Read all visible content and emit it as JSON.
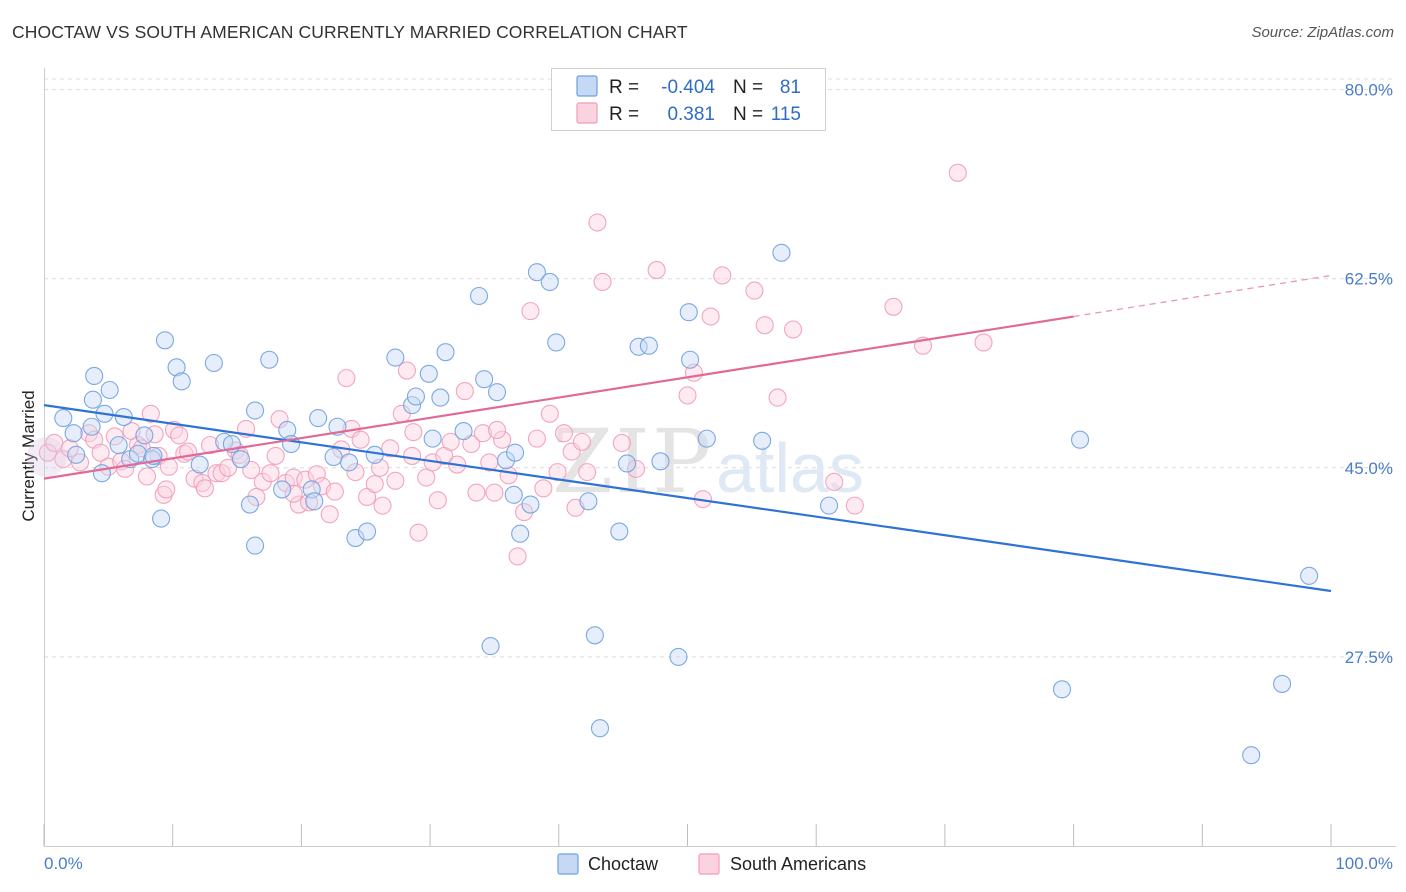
{
  "title": "CHOCTAW VS SOUTH AMERICAN CURRENTLY MARRIED CORRELATION CHART",
  "source": "Source: ZipAtlas.com",
  "watermark": {
    "zip": "ZIP",
    "atlas": "atlas"
  },
  "legend": {
    "r_label": "R =",
    "n_label": "N =",
    "rows": [
      {
        "series": "Choctaw",
        "r": "-0.404",
        "n": "81",
        "color": "#6fa0e0"
      },
      {
        "series": "South Americans",
        "r": "0.381",
        "n": "115",
        "color": "#f29bb8"
      }
    ]
  },
  "bottom_legend": [
    "Choctaw",
    "South Americans"
  ],
  "chart_data": {
    "type": "scatter",
    "ylabel": "Currently Married",
    "xlabel": "",
    "xlim": [
      0,
      100
    ],
    "ylim": [
      10,
      82
    ],
    "x_tick_labels": [
      "0.0%",
      "100.0%"
    ],
    "y_ticks": [
      27.5,
      45.0,
      62.5,
      80.0
    ],
    "y_tick_labels": [
      "27.5%",
      "45.0%",
      "62.5%",
      "80.0%"
    ],
    "grid": true,
    "colors": {
      "choctaw": "#6fa0e0",
      "south_americans": "#f29bb8",
      "choctaw_line": "#2f72d6",
      "south_line": "#e06a96"
    },
    "series": [
      {
        "name": "Choctaw",
        "trend": {
          "x0": 0,
          "y0": 50.8,
          "x1": 100,
          "y1": 33.6
        },
        "points": [
          [
            1.5,
            49.6
          ],
          [
            2.3,
            48.2
          ],
          [
            2.5,
            46.2
          ],
          [
            3.7,
            48.8
          ],
          [
            4.5,
            44.5
          ],
          [
            3.8,
            51.3
          ],
          [
            4.7,
            50.0
          ],
          [
            3.9,
            53.5
          ],
          [
            5.1,
            52.2
          ],
          [
            5.8,
            47.1
          ],
          [
            6.2,
            49.7
          ],
          [
            6.7,
            45.8
          ],
          [
            7.3,
            46.3
          ],
          [
            7.8,
            48.0
          ],
          [
            8.4,
            45.8
          ],
          [
            9.4,
            56.8
          ],
          [
            8.5,
            46.1
          ],
          [
            9.1,
            40.3
          ],
          [
            10.3,
            54.3
          ],
          [
            10.7,
            53.0
          ],
          [
            12.1,
            45.3
          ],
          [
            13.2,
            54.7
          ],
          [
            14.0,
            47.4
          ],
          [
            14.6,
            47.2
          ],
          [
            15.3,
            45.8
          ],
          [
            16.0,
            41.6
          ],
          [
            16.4,
            37.8
          ],
          [
            17.5,
            55.0
          ],
          [
            18.5,
            43.0
          ],
          [
            18.9,
            48.5
          ],
          [
            20.8,
            43.0
          ],
          [
            21.0,
            41.9
          ],
          [
            21.3,
            49.6
          ],
          [
            22.8,
            48.8
          ],
          [
            23.7,
            45.5
          ],
          [
            24.2,
            38.5
          ],
          [
            25.1,
            39.1
          ],
          [
            25.7,
            46.2
          ],
          [
            27.3,
            55.2
          ],
          [
            28.6,
            50.8
          ],
          [
            28.9,
            51.6
          ],
          [
            29.9,
            53.7
          ],
          [
            30.8,
            51.5
          ],
          [
            31.2,
            55.7
          ],
          [
            32.6,
            48.4
          ],
          [
            33.8,
            60.9
          ],
          [
            34.2,
            53.2
          ],
          [
            35.2,
            52.0
          ],
          [
            34.7,
            28.5
          ],
          [
            35.9,
            45.7
          ],
          [
            36.6,
            46.4
          ],
          [
            37.0,
            38.9
          ],
          [
            37.8,
            41.6
          ],
          [
            38.3,
            63.1
          ],
          [
            39.3,
            62.2
          ],
          [
            39.8,
            56.6
          ],
          [
            42.3,
            41.9
          ],
          [
            42.8,
            29.5
          ],
          [
            43.2,
            20.9
          ],
          [
            44.7,
            39.1
          ],
          [
            45.3,
            45.4
          ],
          [
            46.2,
            56.2
          ],
          [
            47.0,
            56.3
          ],
          [
            47.9,
            45.6
          ],
          [
            49.3,
            27.5
          ],
          [
            50.2,
            55.0
          ],
          [
            50.1,
            59.4
          ],
          [
            51.5,
            47.7
          ],
          [
            55.8,
            47.5
          ],
          [
            57.3,
            64.9
          ],
          [
            61.0,
            41.5
          ],
          [
            79.1,
            24.5
          ],
          [
            80.5,
            47.6
          ],
          [
            93.8,
            18.4
          ],
          [
            96.2,
            25.0
          ],
          [
            98.3,
            35.0
          ],
          [
            16.4,
            50.3
          ],
          [
            22.5,
            46.0
          ],
          [
            30.2,
            47.7
          ],
          [
            36.5,
            42.5
          ],
          [
            19.2,
            47.2
          ]
        ]
      },
      {
        "name": "South Americans",
        "trend": {
          "x0": 0,
          "y0": 44.0,
          "x1": 80,
          "y1": 59.0,
          "dash_to_x": 100,
          "dash_to_y": 62.8
        },
        "points": [
          [
            0.3,
            46.4
          ],
          [
            0.8,
            47.3
          ],
          [
            1.5,
            45.8
          ],
          [
            2.0,
            46.8
          ],
          [
            2.8,
            45.5
          ],
          [
            3.5,
            48.2
          ],
          [
            3.9,
            47.6
          ],
          [
            4.4,
            46.4
          ],
          [
            5.0,
            45.1
          ],
          [
            5.5,
            47.9
          ],
          [
            6.0,
            45.6
          ],
          [
            6.3,
            44.9
          ],
          [
            6.8,
            48.4
          ],
          [
            7.3,
            47.1
          ],
          [
            7.6,
            46.8
          ],
          [
            8.0,
            44.2
          ],
          [
            8.3,
            50.0
          ],
          [
            8.6,
            48.1
          ],
          [
            8.9,
            46.1
          ],
          [
            9.3,
            42.5
          ],
          [
            9.7,
            45.1
          ],
          [
            10.1,
            48.5
          ],
          [
            10.5,
            48.0
          ],
          [
            10.9,
            46.3
          ],
          [
            11.2,
            46.5
          ],
          [
            11.7,
            44.0
          ],
          [
            12.3,
            43.6
          ],
          [
            12.5,
            43.1
          ],
          [
            12.9,
            47.1
          ],
          [
            13.4,
            44.5
          ],
          [
            13.8,
            44.5
          ],
          [
            14.3,
            45.0
          ],
          [
            14.9,
            46.6
          ],
          [
            15.2,
            46.2
          ],
          [
            15.7,
            48.6
          ],
          [
            16.1,
            44.8
          ],
          [
            16.5,
            42.3
          ],
          [
            17.0,
            43.7
          ],
          [
            17.6,
            44.5
          ],
          [
            18.0,
            46.1
          ],
          [
            18.3,
            49.5
          ],
          [
            18.8,
            43.6
          ],
          [
            19.4,
            44.1
          ],
          [
            19.8,
            41.6
          ],
          [
            20.3,
            43.9
          ],
          [
            20.6,
            41.8
          ],
          [
            21.2,
            44.4
          ],
          [
            21.6,
            43.3
          ],
          [
            22.2,
            40.7
          ],
          [
            22.6,
            42.8
          ],
          [
            23.1,
            46.7
          ],
          [
            23.5,
            53.3
          ],
          [
            23.9,
            48.6
          ],
          [
            24.2,
            44.6
          ],
          [
            24.6,
            47.6
          ],
          [
            25.1,
            42.3
          ],
          [
            25.7,
            43.5
          ],
          [
            26.3,
            41.5
          ],
          [
            26.9,
            46.8
          ],
          [
            27.3,
            43.8
          ],
          [
            27.8,
            50.0
          ],
          [
            28.2,
            54.0
          ],
          [
            28.6,
            46.1
          ],
          [
            29.1,
            39.0
          ],
          [
            29.7,
            44.1
          ],
          [
            30.2,
            45.5
          ],
          [
            30.6,
            42.0
          ],
          [
            31.1,
            46.1
          ],
          [
            31.6,
            47.4
          ],
          [
            32.1,
            45.3
          ],
          [
            32.7,
            52.1
          ],
          [
            33.2,
            47.2
          ],
          [
            33.6,
            42.7
          ],
          [
            34.1,
            48.2
          ],
          [
            34.6,
            45.5
          ],
          [
            35.0,
            42.7
          ],
          [
            35.6,
            47.6
          ],
          [
            36.1,
            44.3
          ],
          [
            36.8,
            36.8
          ],
          [
            37.3,
            40.9
          ],
          [
            37.8,
            59.5
          ],
          [
            38.3,
            47.7
          ],
          [
            38.8,
            43.1
          ],
          [
            39.3,
            50.0
          ],
          [
            39.9,
            44.6
          ],
          [
            40.4,
            48.2
          ],
          [
            41.0,
            46.5
          ],
          [
            41.3,
            41.3
          ],
          [
            41.8,
            47.4
          ],
          [
            42.2,
            44.6
          ],
          [
            43.0,
            67.7
          ],
          [
            43.4,
            62.2
          ],
          [
            44.9,
            47.3
          ],
          [
            46.0,
            44.9
          ],
          [
            47.6,
            63.3
          ],
          [
            50.0,
            51.7
          ],
          [
            50.5,
            53.8
          ],
          [
            51.2,
            42.1
          ],
          [
            51.8,
            59.0
          ],
          [
            52.7,
            62.8
          ],
          [
            55.2,
            61.4
          ],
          [
            56.0,
            58.2
          ],
          [
            57.0,
            51.5
          ],
          [
            58.2,
            57.8
          ],
          [
            61.4,
            43.7
          ],
          [
            63.0,
            41.5
          ],
          [
            66.0,
            59.9
          ],
          [
            68.3,
            56.3
          ],
          [
            71.0,
            72.3
          ],
          [
            73.0,
            56.6
          ],
          [
            35.2,
            48.5
          ],
          [
            9.5,
            43.0
          ],
          [
            19.4,
            42.6
          ],
          [
            26.1,
            45.0
          ],
          [
            28.7,
            48.3
          ]
        ]
      }
    ]
  }
}
